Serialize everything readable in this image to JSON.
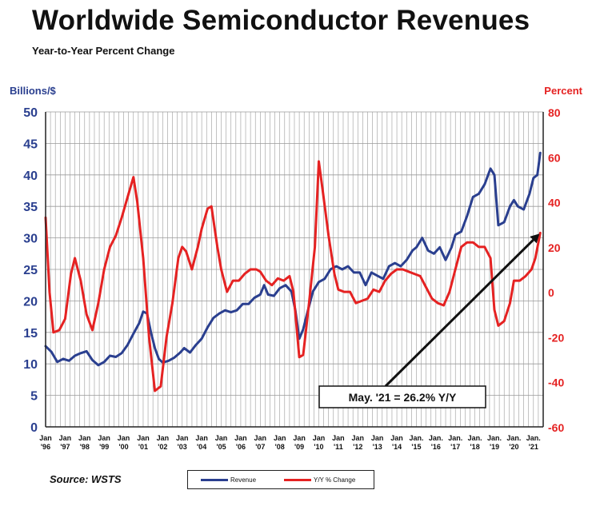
{
  "title": "Worldwide Semiconductor Revenues",
  "subtitle": "Year-to-Year Percent Change",
  "source": "Source: WSTS",
  "colors": {
    "revenue": "#2a3f8f",
    "yoy": "#e52222",
    "grid": "#9a9a9a",
    "axis": "#222222"
  },
  "chart_data": {
    "type": "line",
    "ylabel_left": "Billions/$",
    "ylabel_right": "Percent",
    "ylim_left": [
      0,
      50
    ],
    "ylim_right": [
      -60,
      80
    ],
    "yticks_left": [
      "0",
      "5",
      "10",
      "15",
      "20",
      "25",
      "30",
      "35",
      "40",
      "45",
      "50"
    ],
    "yticks_right": [
      "-60",
      "-40",
      "-20",
      "0",
      "20",
      "40",
      "60",
      "80"
    ],
    "xlim": [
      1996.0,
      2021.5
    ],
    "grid": true,
    "legend_position": "bottom",
    "xtick_labels": [
      {
        "x": 1996.0,
        "top": "Jan",
        "bottom": "'96"
      },
      {
        "x": 1997.0,
        "top": "Jan",
        "bottom": "'97"
      },
      {
        "x": 1998.0,
        "top": "Jan",
        "bottom": "'98"
      },
      {
        "x": 1999.0,
        "top": "Jan",
        "bottom": "'99"
      },
      {
        "x": 2000.0,
        "top": "Jan",
        "bottom": "'00"
      },
      {
        "x": 2001.0,
        "top": "Jan",
        "bottom": "'01"
      },
      {
        "x": 2002.0,
        "top": "Jan",
        "bottom": "'02"
      },
      {
        "x": 2003.0,
        "top": "Jan",
        "bottom": "'03"
      },
      {
        "x": 2004.0,
        "top": "Jan",
        "bottom": "'04"
      },
      {
        "x": 2005.0,
        "top": "Jan",
        "bottom": "'05"
      },
      {
        "x": 2006.0,
        "top": "Jan",
        "bottom": "'06"
      },
      {
        "x": 2007.0,
        "top": "Jan",
        "bottom": "'07"
      },
      {
        "x": 2008.0,
        "top": "Jan",
        "bottom": "'08"
      },
      {
        "x": 2009.0,
        "top": "Jan",
        "bottom": "'09"
      },
      {
        "x": 2010.0,
        "top": "Jan",
        "bottom": "'10"
      },
      {
        "x": 2011.0,
        "top": "Jan",
        "bottom": "'11"
      },
      {
        "x": 2012.0,
        "top": "Jan",
        "bottom": "'12"
      },
      {
        "x": 2013.0,
        "top": "Jan",
        "bottom": "'13"
      },
      {
        "x": 2014.0,
        "top": "Jan",
        "bottom": "'14"
      },
      {
        "x": 2015.0,
        "top": "Jan.",
        "bottom": "'15"
      },
      {
        "x": 2016.0,
        "top": "Jan.",
        "bottom": "'16"
      },
      {
        "x": 2017.0,
        "top": "Jan.",
        "bottom": "'17"
      },
      {
        "x": 2018.0,
        "top": "Jan.",
        "bottom": "'18"
      },
      {
        "x": 2019.0,
        "top": "Jan.",
        "bottom": "'19"
      },
      {
        "x": 2020.0,
        "top": "Jan.",
        "bottom": "'20"
      },
      {
        "x": 2021.0,
        "top": "Jan.",
        "bottom": "'21"
      }
    ],
    "series": [
      {
        "name": "Revenue",
        "axis": "left",
        "points": [
          [
            1996.0,
            12.8
          ],
          [
            1996.3,
            11.9
          ],
          [
            1996.6,
            10.3
          ],
          [
            1996.9,
            10.8
          ],
          [
            1997.2,
            10.5
          ],
          [
            1997.5,
            11.3
          ],
          [
            1997.8,
            11.7
          ],
          [
            1998.1,
            12.0
          ],
          [
            1998.4,
            10.6
          ],
          [
            1998.7,
            9.8
          ],
          [
            1999.0,
            10.3
          ],
          [
            1999.3,
            11.3
          ],
          [
            1999.6,
            11.1
          ],
          [
            1999.9,
            11.7
          ],
          [
            2000.2,
            13.0
          ],
          [
            2000.5,
            14.8
          ],
          [
            2000.8,
            16.5
          ],
          [
            2001.0,
            18.3
          ],
          [
            2001.2,
            18.0
          ],
          [
            2001.4,
            15.0
          ],
          [
            2001.6,
            12.5
          ],
          [
            2001.8,
            10.8
          ],
          [
            2002.0,
            10.2
          ],
          [
            2002.3,
            10.5
          ],
          [
            2002.6,
            11.0
          ],
          [
            2002.9,
            11.8
          ],
          [
            2003.1,
            12.5
          ],
          [
            2003.4,
            11.8
          ],
          [
            2003.7,
            13.0
          ],
          [
            2004.0,
            14.0
          ],
          [
            2004.3,
            15.8
          ],
          [
            2004.6,
            17.3
          ],
          [
            2004.9,
            18.0
          ],
          [
            2005.2,
            18.5
          ],
          [
            2005.5,
            18.2
          ],
          [
            2005.8,
            18.5
          ],
          [
            2006.1,
            19.5
          ],
          [
            2006.4,
            19.5
          ],
          [
            2006.7,
            20.5
          ],
          [
            2007.0,
            21.0
          ],
          [
            2007.2,
            22.5
          ],
          [
            2007.4,
            21.0
          ],
          [
            2007.7,
            20.8
          ],
          [
            2008.0,
            22.0
          ],
          [
            2008.3,
            22.5
          ],
          [
            2008.6,
            21.5
          ],
          [
            2008.8,
            18.5
          ],
          [
            2009.0,
            14.0
          ],
          [
            2009.2,
            15.5
          ],
          [
            2009.4,
            18.0
          ],
          [
            2009.7,
            21.5
          ],
          [
            2010.0,
            23.0
          ],
          [
            2010.3,
            23.5
          ],
          [
            2010.6,
            25.0
          ],
          [
            2010.9,
            25.5
          ],
          [
            2011.2,
            25.0
          ],
          [
            2011.5,
            25.5
          ],
          [
            2011.8,
            24.5
          ],
          [
            2012.1,
            24.5
          ],
          [
            2012.4,
            22.5
          ],
          [
            2012.7,
            24.5
          ],
          [
            2013.0,
            24.0
          ],
          [
            2013.3,
            23.5
          ],
          [
            2013.6,
            25.5
          ],
          [
            2013.9,
            26.0
          ],
          [
            2014.2,
            25.5
          ],
          [
            2014.5,
            26.5
          ],
          [
            2014.8,
            28.0
          ],
          [
            2015.0,
            28.5
          ],
          [
            2015.3,
            30.0
          ],
          [
            2015.6,
            28.0
          ],
          [
            2015.9,
            27.5
          ],
          [
            2016.2,
            28.5
          ],
          [
            2016.5,
            26.5
          ],
          [
            2016.8,
            28.5
          ],
          [
            2017.0,
            30.5
          ],
          [
            2017.3,
            31.0
          ],
          [
            2017.6,
            33.5
          ],
          [
            2017.9,
            36.5
          ],
          [
            2018.2,
            37.0
          ],
          [
            2018.5,
            38.5
          ],
          [
            2018.8,
            41.0
          ],
          [
            2019.0,
            40.0
          ],
          [
            2019.2,
            32.0
          ],
          [
            2019.5,
            32.5
          ],
          [
            2019.8,
            35.0
          ],
          [
            2020.0,
            36.0
          ],
          [
            2020.2,
            35.0
          ],
          [
            2020.5,
            34.5
          ],
          [
            2020.8,
            37.0
          ],
          [
            2021.0,
            39.5
          ],
          [
            2021.2,
            40.0
          ],
          [
            2021.35,
            43.5
          ]
        ]
      },
      {
        "name": "Y/Y % Change",
        "axis": "right",
        "points": [
          [
            1996.0,
            33.0
          ],
          [
            1996.2,
            0.0
          ],
          [
            1996.4,
            -18.0
          ],
          [
            1996.7,
            -17.0
          ],
          [
            1997.0,
            -12.0
          ],
          [
            1997.3,
            8.0
          ],
          [
            1997.5,
            15.0
          ],
          [
            1997.8,
            5.0
          ],
          [
            1998.1,
            -10.0
          ],
          [
            1998.4,
            -17.0
          ],
          [
            1998.7,
            -5.0
          ],
          [
            1999.0,
            10.0
          ],
          [
            1999.3,
            20.0
          ],
          [
            1999.6,
            25.0
          ],
          [
            1999.9,
            33.0
          ],
          [
            2000.2,
            42.0
          ],
          [
            2000.5,
            51.0
          ],
          [
            2000.7,
            40.0
          ],
          [
            2001.0,
            15.0
          ],
          [
            2001.3,
            -20.0
          ],
          [
            2001.6,
            -44.0
          ],
          [
            2001.9,
            -42.0
          ],
          [
            2002.2,
            -20.0
          ],
          [
            2002.5,
            -5.0
          ],
          [
            2002.8,
            15.0
          ],
          [
            2003.0,
            20.0
          ],
          [
            2003.2,
            18.0
          ],
          [
            2003.5,
            10.0
          ],
          [
            2003.8,
            20.0
          ],
          [
            2004.0,
            28.0
          ],
          [
            2004.3,
            37.0
          ],
          [
            2004.5,
            38.0
          ],
          [
            2004.8,
            20.0
          ],
          [
            2005.0,
            10.0
          ],
          [
            2005.3,
            0.0
          ],
          [
            2005.6,
            5.0
          ],
          [
            2005.9,
            5.0
          ],
          [
            2006.2,
            8.0
          ],
          [
            2006.5,
            10.0
          ],
          [
            2006.8,
            10.0
          ],
          [
            2007.0,
            9.0
          ],
          [
            2007.3,
            5.0
          ],
          [
            2007.6,
            3.0
          ],
          [
            2007.9,
            6.0
          ],
          [
            2008.2,
            5.0
          ],
          [
            2008.5,
            7.0
          ],
          [
            2008.7,
            0.0
          ],
          [
            2009.0,
            -29.0
          ],
          [
            2009.2,
            -28.0
          ],
          [
            2009.5,
            -5.0
          ],
          [
            2009.8,
            20.0
          ],
          [
            2010.0,
            58.0
          ],
          [
            2010.2,
            45.0
          ],
          [
            2010.5,
            25.0
          ],
          [
            2010.8,
            8.0
          ],
          [
            2011.0,
            1.0
          ],
          [
            2011.3,
            0.0
          ],
          [
            2011.6,
            0.0
          ],
          [
            2011.9,
            -5.0
          ],
          [
            2012.2,
            -4.0
          ],
          [
            2012.5,
            -3.0
          ],
          [
            2012.8,
            1.0
          ],
          [
            2013.1,
            0.0
          ],
          [
            2013.4,
            5.0
          ],
          [
            2013.7,
            8.0
          ],
          [
            2014.0,
            10.0
          ],
          [
            2014.3,
            10.0
          ],
          [
            2014.6,
            9.0
          ],
          [
            2014.9,
            8.0
          ],
          [
            2015.2,
            7.0
          ],
          [
            2015.5,
            2.0
          ],
          [
            2015.8,
            -3.0
          ],
          [
            2016.1,
            -5.0
          ],
          [
            2016.4,
            -6.0
          ],
          [
            2016.7,
            0.0
          ],
          [
            2017.0,
            10.0
          ],
          [
            2017.3,
            20.0
          ],
          [
            2017.6,
            22.0
          ],
          [
            2017.9,
            22.0
          ],
          [
            2018.2,
            20.0
          ],
          [
            2018.5,
            20.0
          ],
          [
            2018.8,
            15.0
          ],
          [
            2019.0,
            -8.0
          ],
          [
            2019.2,
            -15.0
          ],
          [
            2019.5,
            -13.0
          ],
          [
            2019.8,
            -5.0
          ],
          [
            2020.0,
            5.0
          ],
          [
            2020.3,
            5.0
          ],
          [
            2020.6,
            7.0
          ],
          [
            2020.9,
            10.0
          ],
          [
            2021.1,
            15.0
          ],
          [
            2021.35,
            26.2
          ]
        ]
      }
    ],
    "annotation": {
      "text": "May. '21 = 26.2% Y/Y",
      "target_x": 2021.35,
      "target_y_percent": 26.2
    }
  }
}
